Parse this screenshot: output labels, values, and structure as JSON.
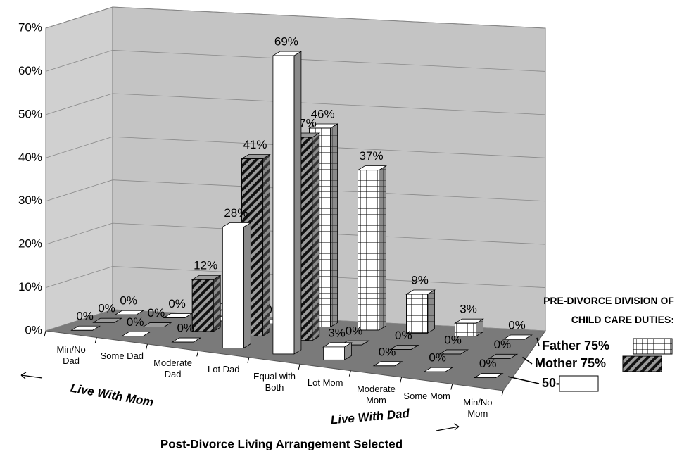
{
  "chart_data": {
    "type": "bar3d",
    "x_label": "Post-Divorce Living Arrangement Selected",
    "annotations": [
      "Live With Mom",
      "Live With Dad"
    ],
    "legend_title": "PRE-DIVORCE DIVISION OF CHILD CARE DUTIES:",
    "legend_position": "right",
    "categories": [
      "Min/No Dad",
      "Some Dad",
      "Moderate Dad",
      "Lot Dad",
      "Equal with Both",
      "Lot Mom",
      "Moderate Mom",
      "Some Mom",
      "Min/No Mom"
    ],
    "ylim": [
      0,
      70
    ],
    "yticks": [
      {
        "value": 0,
        "label": "0%"
      },
      {
        "value": 10,
        "label": "10%"
      },
      {
        "value": 20,
        "label": "20%"
      },
      {
        "value": 30,
        "label": "30%"
      },
      {
        "value": 40,
        "label": "40%"
      },
      {
        "value": 50,
        "label": "50%"
      },
      {
        "value": 60,
        "label": "60%"
      },
      {
        "value": 70,
        "label": "70%"
      }
    ],
    "grid": true,
    "series": [
      {
        "name": "Father 75%",
        "color": "#ffffff",
        "pattern": "grid",
        "values": [
          0,
          0,
          0,
          0,
          46,
          37,
          9,
          3,
          0
        ],
        "value_labels": [
          "0%",
          "0%",
          "0%",
          "0%",
          "46%",
          "37%",
          "9%",
          "3%",
          "0%"
        ]
      },
      {
        "name": "Mother 75%",
        "color": "#9a9a9a",
        "pattern": "hatch",
        "values": [
          0,
          0,
          12,
          41,
          47,
          0,
          0,
          0,
          0
        ],
        "value_labels": [
          "0%",
          "0%",
          "12%",
          "41%",
          "47%",
          "0%",
          "0%",
          "0%",
          "0%"
        ]
      },
      {
        "name": "50-50",
        "color": "#ffffff",
        "pattern": "none",
        "values": [
          0,
          0,
          0,
          28,
          69,
          3,
          0,
          0,
          0
        ],
        "value_labels": [
          "0%",
          "0%",
          "0%",
          "28%",
          "69%",
          "3%",
          "0%",
          "0%",
          "0%"
        ]
      }
    ]
  }
}
